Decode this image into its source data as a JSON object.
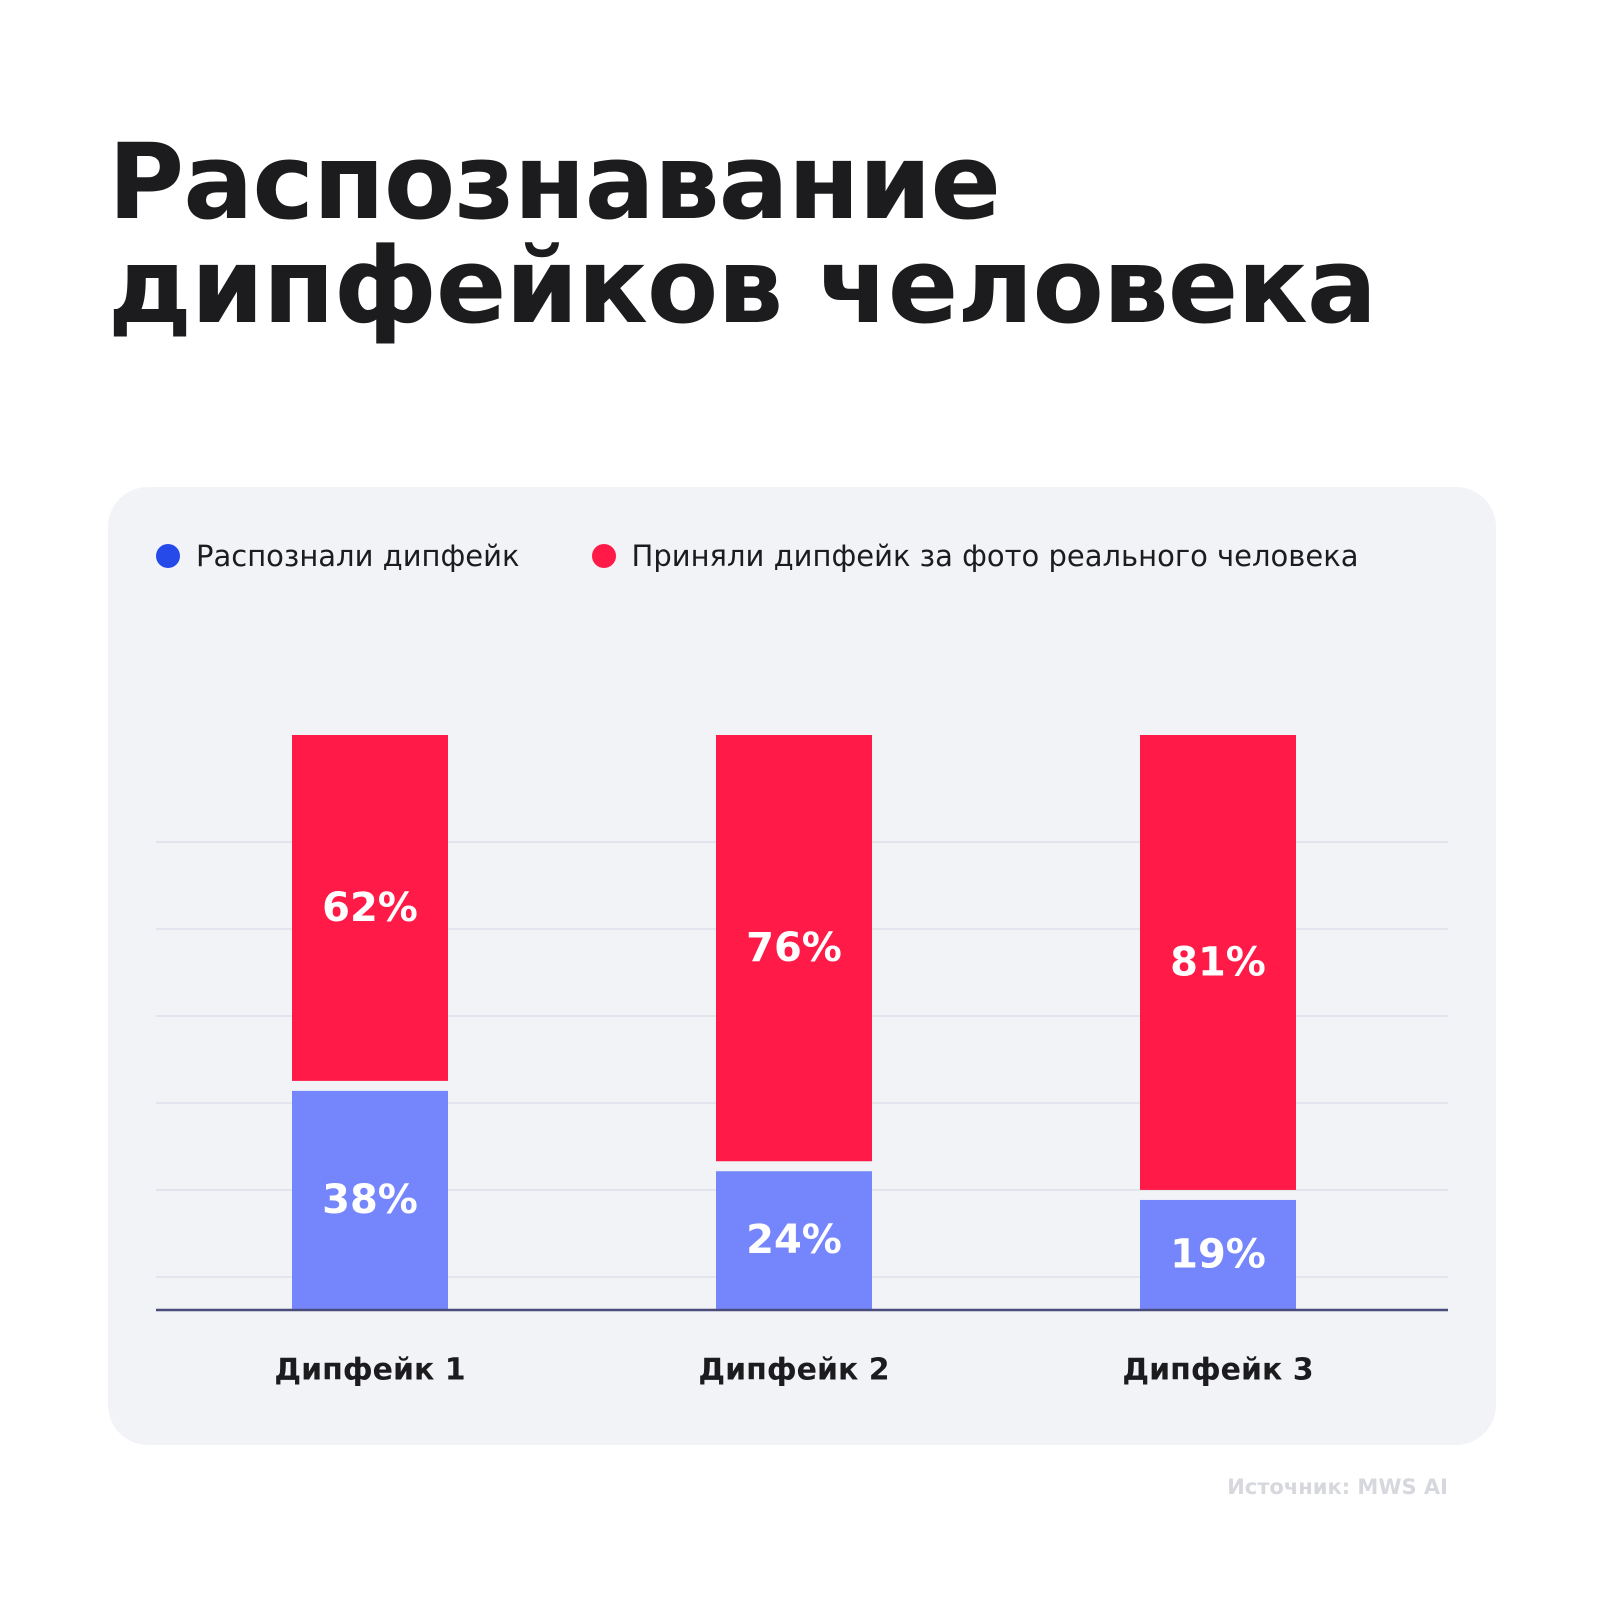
{
  "title_lines": [
    "Распознавание",
    "дипфейков человека"
  ],
  "source": "Источник: MWS AI",
  "chart_data": {
    "type": "bar",
    "stacked": true,
    "categories": [
      "Дипфейк 1",
      "Дипфейк 2",
      "Дипфейк 3"
    ],
    "series": [
      {
        "name": "Распознали дипфейк",
        "values": [
          38,
          24,
          19
        ],
        "labels": [
          "38%",
          "24%",
          "19%"
        ],
        "color": "#7586fc",
        "legend_color": "#2649ea"
      },
      {
        "name": "Приняли дипфейк за фото реального человека",
        "values": [
          62,
          76,
          81
        ],
        "labels": [
          "62%",
          "76%",
          "81%"
        ],
        "color": "#ff1a47",
        "legend_color": "#ff1a47"
      }
    ],
    "ylim": [
      0,
      100
    ],
    "grid": true,
    "legend": "top-left",
    "colors": {
      "gridline": "#e3e5ee",
      "baseline": "#4a4d7c",
      "bar_label": "#ffffff",
      "category_label": "#1c1c1e"
    }
  }
}
